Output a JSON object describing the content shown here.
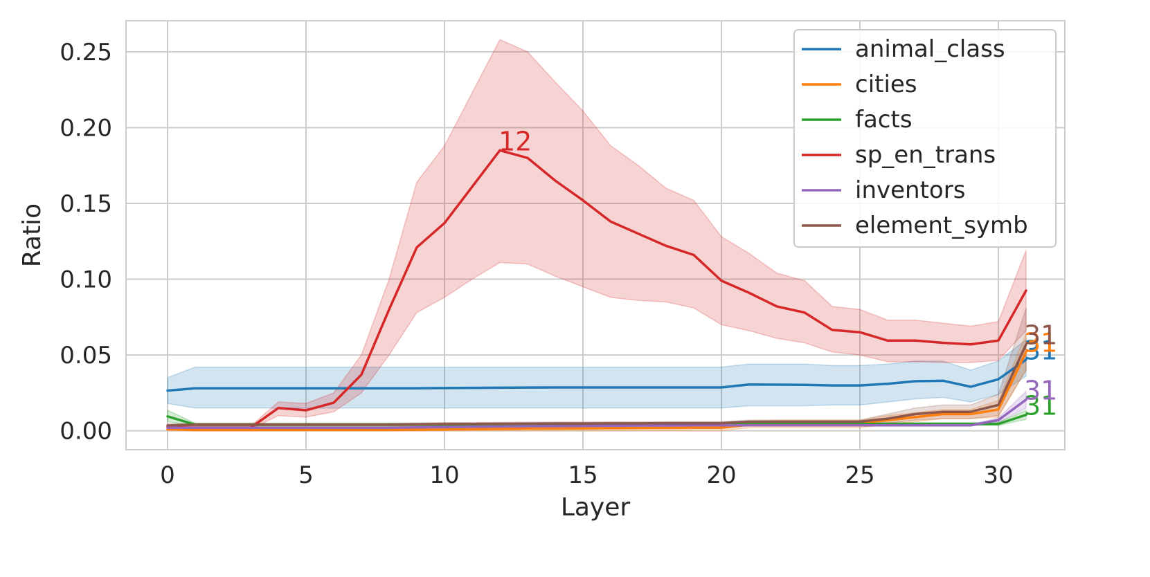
{
  "chart_data": {
    "type": "line",
    "xlabel": "Layer",
    "ylabel": "Ratio",
    "xlim": [
      -1.5,
      32.4
    ],
    "ylim": [
      -0.0125,
      0.2705
    ],
    "xticks": [
      0,
      5,
      10,
      15,
      20,
      25,
      30
    ],
    "xtick_labels": [
      "0",
      "5",
      "10",
      "15",
      "20",
      "25",
      "30"
    ],
    "yticks": [
      0.0,
      0.05,
      0.1,
      0.15,
      0.2,
      0.25
    ],
    "ytick_labels": [
      "0.00",
      "0.05",
      "0.10",
      "0.15",
      "0.20",
      "0.25"
    ],
    "grid": true,
    "legend_position": "upper right",
    "x": [
      0,
      1,
      2,
      3,
      4,
      5,
      6,
      7,
      8,
      9,
      10,
      11,
      12,
      13,
      14,
      15,
      16,
      17,
      18,
      19,
      20,
      21,
      22,
      23,
      24,
      25,
      26,
      27,
      28,
      29,
      30,
      31
    ],
    "series": [
      {
        "name": "animal_class",
        "color": "#1f77b4",
        "values": [
          0.0265,
          0.028,
          0.028,
          0.028,
          0.028,
          0.028,
          0.028,
          0.028,
          0.028,
          0.028,
          0.0282,
          0.0283,
          0.0284,
          0.0285,
          0.0286,
          0.0286,
          0.0286,
          0.0286,
          0.0286,
          0.0286,
          0.0286,
          0.0305,
          0.0304,
          0.0303,
          0.0299,
          0.0299,
          0.031,
          0.0327,
          0.033,
          0.029,
          0.034,
          0.047
        ],
        "lower": [
          0.018,
          0.015,
          0.015,
          0.015,
          0.015,
          0.015,
          0.015,
          0.015,
          0.015,
          0.015,
          0.015,
          0.015,
          0.015,
          0.015,
          0.015,
          0.015,
          0.015,
          0.015,
          0.015,
          0.015,
          0.015,
          0.0165,
          0.0165,
          0.0165,
          0.017,
          0.017,
          0.019,
          0.021,
          0.022,
          0.019,
          0.024,
          0.036
        ],
        "upper": [
          0.035,
          0.042,
          0.042,
          0.042,
          0.042,
          0.042,
          0.042,
          0.042,
          0.042,
          0.042,
          0.042,
          0.042,
          0.042,
          0.042,
          0.042,
          0.042,
          0.042,
          0.042,
          0.042,
          0.042,
          0.042,
          0.044,
          0.044,
          0.044,
          0.043,
          0.043,
          0.044,
          0.046,
          0.046,
          0.04,
          0.046,
          0.06
        ],
        "label_text": "31"
      },
      {
        "name": "cities",
        "color": "#ff7f0e",
        "values": [
          0.001,
          0.0005,
          0.0005,
          0.0005,
          0.0005,
          0.0005,
          0.0005,
          0.0005,
          0.0005,
          0.0006,
          0.0008,
          0.001,
          0.0012,
          0.0014,
          0.0015,
          0.0016,
          0.0017,
          0.0018,
          0.0019,
          0.002,
          0.002,
          0.004,
          0.005,
          0.005,
          0.005,
          0.005,
          0.007,
          0.009,
          0.011,
          0.011,
          0.014,
          0.052
        ],
        "lower": [
          0.0,
          0.0,
          0.0,
          0.0,
          0.0,
          0.0,
          0.0,
          0.0,
          0.0,
          0.0,
          0.0,
          0.0,
          0.0,
          0.0,
          0.0,
          0.0,
          0.0,
          0.0,
          0.0,
          0.0,
          0.0,
          0.002,
          0.002,
          0.002,
          0.002,
          0.002,
          0.004,
          0.006,
          0.008,
          0.008,
          0.009,
          0.04
        ],
        "upper": [
          0.002,
          0.0015,
          0.0015,
          0.0015,
          0.0015,
          0.0015,
          0.0015,
          0.0015,
          0.0015,
          0.0016,
          0.0018,
          0.002,
          0.0022,
          0.0024,
          0.0025,
          0.0026,
          0.0027,
          0.0028,
          0.0029,
          0.003,
          0.003,
          0.006,
          0.007,
          0.007,
          0.007,
          0.007,
          0.01,
          0.012,
          0.014,
          0.014,
          0.02,
          0.064
        ],
        "label_text": "31"
      },
      {
        "name": "facts",
        "color": "#2ca02c",
        "values": [
          0.0095,
          0.004,
          0.004,
          0.004,
          0.004,
          0.004,
          0.004,
          0.004,
          0.004,
          0.004,
          0.004,
          0.004,
          0.004,
          0.004,
          0.004,
          0.004,
          0.004,
          0.004,
          0.004,
          0.004,
          0.004,
          0.0045,
          0.0045,
          0.0045,
          0.0045,
          0.0045,
          0.0045,
          0.0045,
          0.0045,
          0.0045,
          0.0045,
          0.0105
        ],
        "lower": [
          0.006,
          0.003,
          0.003,
          0.003,
          0.003,
          0.003,
          0.003,
          0.003,
          0.003,
          0.003,
          0.003,
          0.003,
          0.003,
          0.003,
          0.003,
          0.003,
          0.003,
          0.003,
          0.003,
          0.003,
          0.003,
          0.0035,
          0.0035,
          0.0035,
          0.0035,
          0.0035,
          0.0035,
          0.0035,
          0.0035,
          0.0035,
          0.0035,
          0.0075
        ],
        "upper": [
          0.0135,
          0.005,
          0.005,
          0.005,
          0.005,
          0.005,
          0.005,
          0.005,
          0.005,
          0.005,
          0.005,
          0.005,
          0.005,
          0.005,
          0.005,
          0.005,
          0.005,
          0.005,
          0.005,
          0.005,
          0.005,
          0.0055,
          0.0055,
          0.0055,
          0.0055,
          0.0055,
          0.0055,
          0.0055,
          0.0055,
          0.0055,
          0.0055,
          0.0135
        ],
        "label_text": "31"
      },
      {
        "name": "sp_en_trans",
        "color": "#d62728",
        "values": [
          0.0025,
          0.002,
          0.002,
          0.002,
          0.015,
          0.0135,
          0.0185,
          0.037,
          0.08,
          0.121,
          0.137,
          0.161,
          0.185,
          0.18,
          0.165,
          0.152,
          0.138,
          0.13,
          0.122,
          0.116,
          0.099,
          0.091,
          0.082,
          0.078,
          0.0665,
          0.065,
          0.0595,
          0.0595,
          0.058,
          0.057,
          0.0595,
          0.0925
        ],
        "lower": [
          0.001,
          0.001,
          0.001,
          0.001,
          0.01,
          0.009,
          0.0125,
          0.025,
          0.05,
          0.078,
          0.088,
          0.1,
          0.111,
          0.11,
          0.102,
          0.095,
          0.088,
          0.086,
          0.085,
          0.081,
          0.07,
          0.066,
          0.061,
          0.058,
          0.052,
          0.05,
          0.0455,
          0.0455,
          0.045,
          0.045,
          0.0465,
          0.066
        ],
        "upper": [
          0.004,
          0.003,
          0.003,
          0.003,
          0.019,
          0.018,
          0.025,
          0.05,
          0.1,
          0.164,
          0.188,
          0.223,
          0.258,
          0.25,
          0.23,
          0.211,
          0.188,
          0.175,
          0.16,
          0.152,
          0.128,
          0.117,
          0.104,
          0.099,
          0.082,
          0.08,
          0.073,
          0.073,
          0.071,
          0.069,
          0.072,
          0.119
        ],
        "label_text": "12",
        "label_layer": 12
      },
      {
        "name": "inventors",
        "color": "#9467bd",
        "values": [
          0.002,
          0.002,
          0.002,
          0.002,
          0.002,
          0.002,
          0.002,
          0.002,
          0.002,
          0.0022,
          0.0024,
          0.0026,
          0.0028,
          0.003,
          0.0031,
          0.0032,
          0.0033,
          0.0034,
          0.0035,
          0.0036,
          0.0036,
          0.0036,
          0.0036,
          0.0036,
          0.0036,
          0.0036,
          0.0036,
          0.0036,
          0.0036,
          0.0036,
          0.007,
          0.0205
        ],
        "lower": [
          0.0015,
          0.0015,
          0.0015,
          0.0015,
          0.0015,
          0.0015,
          0.0015,
          0.0015,
          0.0015,
          0.0017,
          0.0019,
          0.0021,
          0.0023,
          0.0025,
          0.0026,
          0.0027,
          0.0028,
          0.0029,
          0.003,
          0.0031,
          0.0031,
          0.0031,
          0.0031,
          0.0031,
          0.0031,
          0.0031,
          0.0031,
          0.0031,
          0.0031,
          0.0031,
          0.0055,
          0.015
        ],
        "upper": [
          0.0025,
          0.0025,
          0.0025,
          0.0025,
          0.0025,
          0.0025,
          0.0025,
          0.0025,
          0.0025,
          0.0027,
          0.0029,
          0.0031,
          0.0033,
          0.0035,
          0.0036,
          0.0037,
          0.0038,
          0.0039,
          0.004,
          0.0041,
          0.0041,
          0.0041,
          0.0041,
          0.0041,
          0.0041,
          0.0041,
          0.0041,
          0.0041,
          0.0041,
          0.0041,
          0.0085,
          0.026
        ],
        "label_text": "31"
      },
      {
        "name": "element_symb",
        "color": "#8c564b",
        "values": [
          0.0035,
          0.004,
          0.004,
          0.004,
          0.004,
          0.004,
          0.004,
          0.004,
          0.004,
          0.0042,
          0.0044,
          0.0045,
          0.0046,
          0.0047,
          0.0048,
          0.0048,
          0.0049,
          0.0049,
          0.005,
          0.005,
          0.005,
          0.006,
          0.006,
          0.006,
          0.006,
          0.006,
          0.008,
          0.011,
          0.0125,
          0.0125,
          0.017,
          0.057
        ],
        "lower": [
          0.0025,
          0.003,
          0.003,
          0.003,
          0.003,
          0.003,
          0.003,
          0.003,
          0.003,
          0.0032,
          0.0034,
          0.0035,
          0.0036,
          0.0037,
          0.0038,
          0.0038,
          0.0039,
          0.0039,
          0.004,
          0.004,
          0.004,
          0.005,
          0.005,
          0.005,
          0.005,
          0.005,
          0.005,
          0.007,
          0.008,
          0.008,
          0.01,
          0.04
        ],
        "upper": [
          0.0045,
          0.005,
          0.005,
          0.005,
          0.005,
          0.005,
          0.005,
          0.005,
          0.005,
          0.0052,
          0.0054,
          0.0055,
          0.0056,
          0.0057,
          0.0058,
          0.0058,
          0.0059,
          0.0059,
          0.006,
          0.006,
          0.006,
          0.007,
          0.007,
          0.007,
          0.007,
          0.007,
          0.011,
          0.015,
          0.017,
          0.017,
          0.024,
          0.081
        ],
        "label_text": "31"
      }
    ]
  }
}
